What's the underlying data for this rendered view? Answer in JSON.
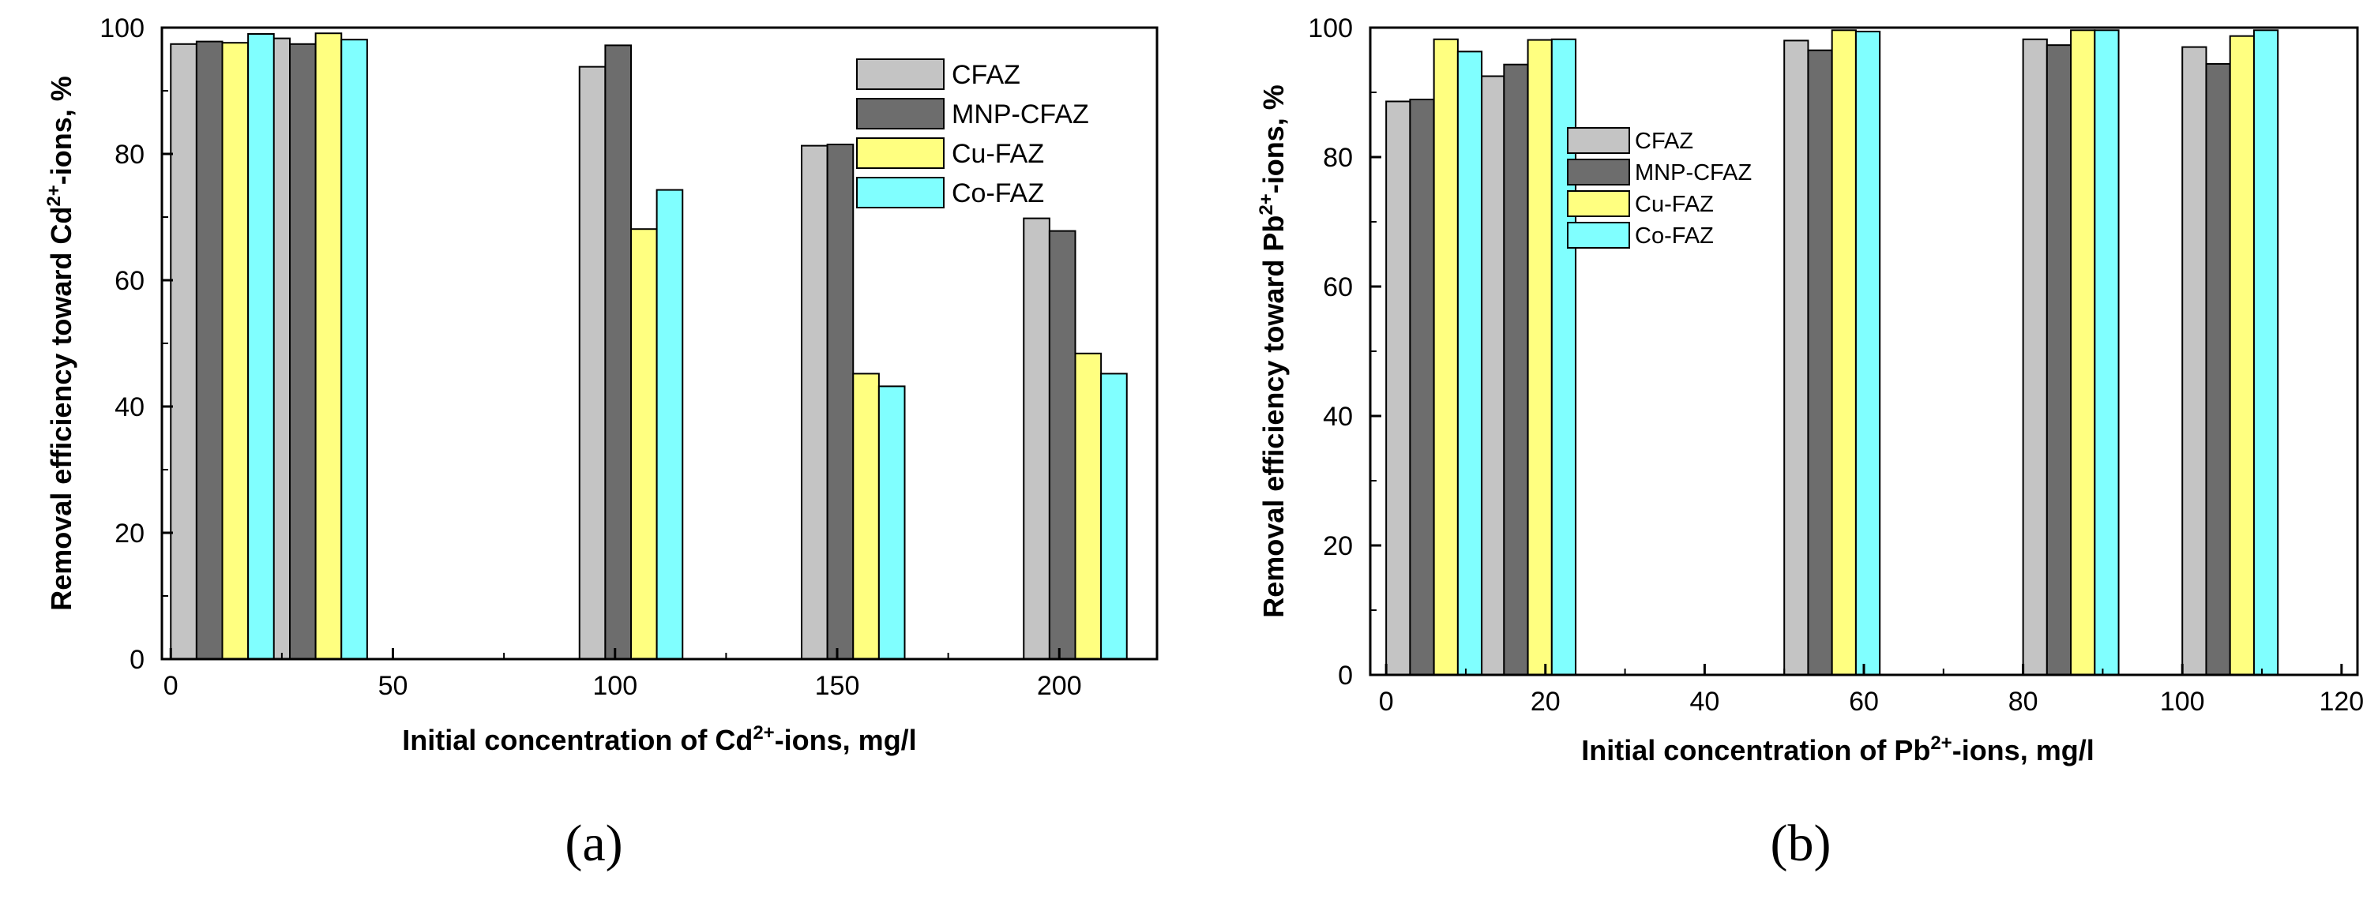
{
  "chart_data": [
    {
      "id": "a",
      "type": "bar",
      "panel_label": "(a)",
      "xlabel_parts": [
        "Initial concentration of Cd",
        "2+",
        "-ions, mg/l"
      ],
      "ylabel_parts": [
        "Removal efficiency toward Cd",
        "2+",
        "-ions, %"
      ],
      "xlim": [
        -2,
        222
      ],
      "ylim": [
        0,
        100
      ],
      "x_ticks": [
        0,
        50,
        100,
        150,
        200
      ],
      "y_ticks": [
        0,
        20,
        40,
        60,
        80,
        100
      ],
      "legend_position": "top-right",
      "bar_width": 5.8,
      "colors": [
        "#c4c4c4",
        "#6d6d6d",
        "#ffff80",
        "#80ffff"
      ],
      "series": [
        {
          "name": "CFAZ",
          "bars": [
            {
              "x": 2.9,
              "y": 97.4
            },
            {
              "x": 23.9,
              "y": 98.3
            },
            {
              "x": 94.9,
              "y": 93.8
            },
            {
              "x": 144.9,
              "y": 81.3
            },
            {
              "x": 194.9,
              "y": 69.8
            }
          ]
        },
        {
          "name": "MNP-CFAZ",
          "bars": [
            {
              "x": 8.7,
              "y": 97.8
            },
            {
              "x": 29.7,
              "y": 97.4
            },
            {
              "x": 100.7,
              "y": 97.2
            },
            {
              "x": 150.7,
              "y": 81.5
            },
            {
              "x": 200.7,
              "y": 67.8
            }
          ]
        },
        {
          "name": "Cu-FAZ",
          "bars": [
            {
              "x": 14.5,
              "y": 97.6
            },
            {
              "x": 35.5,
              "y": 99.1
            },
            {
              "x": 106.5,
              "y": 68.1
            },
            {
              "x": 156.5,
              "y": 45.2
            },
            {
              "x": 206.5,
              "y": 48.4
            }
          ]
        },
        {
          "name": "Co-FAZ",
          "bars": [
            {
              "x": 20.3,
              "y": 99.0
            },
            {
              "x": 41.3,
              "y": 98.1
            },
            {
              "x": 112.3,
              "y": 74.3
            },
            {
              "x": 162.3,
              "y": 43.2
            },
            {
              "x": 212.3,
              "y": 45.2
            }
          ]
        }
      ]
    },
    {
      "id": "b",
      "type": "bar",
      "panel_label": "(b)",
      "xlabel_parts": [
        "Initial concentration of Pb",
        "2+",
        "-ions, mg/l"
      ],
      "ylabel_parts": [
        "Removal efficiency toward Pb",
        "2+",
        "-ions, %"
      ],
      "xlim": [
        -2,
        122
      ],
      "ylim": [
        0,
        100
      ],
      "x_ticks": [
        0,
        20,
        40,
        60,
        80,
        100,
        120
      ],
      "y_ticks": [
        0,
        20,
        40,
        60,
        80,
        100
      ],
      "legend_position": "top-left",
      "bar_width": 3.0,
      "colors": [
        "#c4c4c4",
        "#6d6d6d",
        "#ffff80",
        "#80ffff"
      ],
      "series": [
        {
          "name": "CFAZ",
          "bars": [
            {
              "x": 1.5,
              "y": 88.6
            },
            {
              "x": 13.3,
              "y": 92.5
            },
            {
              "x": 51.5,
              "y": 98.0
            },
            {
              "x": 81.5,
              "y": 98.2
            },
            {
              "x": 101.5,
              "y": 97.0
            }
          ]
        },
        {
          "name": "MNP-CFAZ",
          "bars": [
            {
              "x": 4.5,
              "y": 88.9
            },
            {
              "x": 16.3,
              "y": 94.3
            },
            {
              "x": 54.5,
              "y": 96.5
            },
            {
              "x": 84.5,
              "y": 97.3
            },
            {
              "x": 104.5,
              "y": 94.4
            }
          ]
        },
        {
          "name": "Cu-FAZ",
          "bars": [
            {
              "x": 7.5,
              "y": 98.2
            },
            {
              "x": 19.3,
              "y": 98.1
            },
            {
              "x": 57.5,
              "y": 99.6
            },
            {
              "x": 87.5,
              "y": 99.6
            },
            {
              "x": 107.5,
              "y": 98.7
            }
          ]
        },
        {
          "name": "Co-FAZ",
          "bars": [
            {
              "x": 10.5,
              "y": 96.3
            },
            {
              "x": 22.3,
              "y": 98.2
            },
            {
              "x": 60.5,
              "y": 99.4
            },
            {
              "x": 90.5,
              "y": 99.6
            },
            {
              "x": 110.5,
              "y": 99.6
            }
          ]
        }
      ]
    }
  ]
}
